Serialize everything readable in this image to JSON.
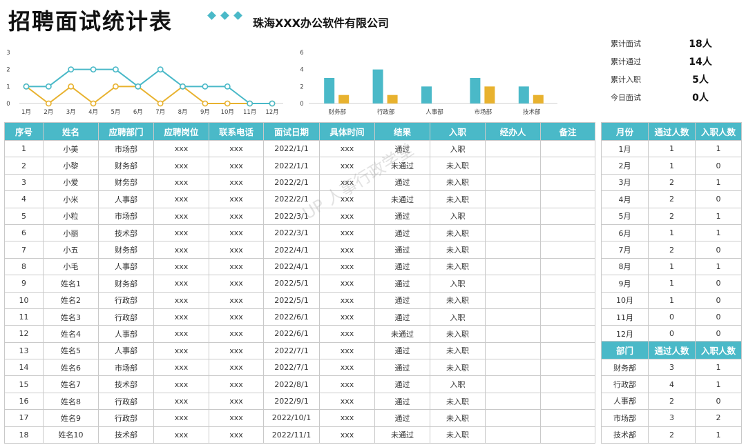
{
  "header": {
    "title": "招聘面试统计表",
    "company": "珠海XXX办公软件有限公司"
  },
  "stats": [
    {
      "label": "累计面试",
      "value": "18人"
    },
    {
      "label": "累计通过",
      "value": "14人"
    },
    {
      "label": "累计入职",
      "value": "5人"
    },
    {
      "label": "今日面试",
      "value": "0人"
    }
  ],
  "colors": {
    "accent": "#4ab9c8",
    "secondary": "#e8b22f"
  },
  "watermark": "UP 人事行政学堂",
  "chart_data": [
    {
      "type": "line",
      "x": [
        "1月",
        "2月",
        "3月",
        "4月",
        "5月",
        "6月",
        "7月",
        "8月",
        "9月",
        "10月",
        "11月",
        "12月"
      ],
      "yticks": [
        0,
        1,
        2,
        3
      ],
      "ylim": [
        0,
        3
      ],
      "series": [
        {
          "name": "",
          "color": "#4ab9c8",
          "values": [
            1,
            1,
            2,
            2,
            2,
            1,
            2,
            1,
            1,
            1,
            0,
            0
          ]
        },
        {
          "name": "",
          "color": "#e8b22f",
          "values": [
            1,
            0,
            1,
            0,
            1,
            1,
            0,
            1,
            0,
            0,
            0,
            0
          ]
        }
      ]
    },
    {
      "type": "bar",
      "categories": [
        "财务部",
        "行政部",
        "人事部",
        "市场部",
        "技术部"
      ],
      "yticks": [
        0,
        2,
        4,
        6
      ],
      "ylim": [
        0,
        6
      ],
      "series": [
        {
          "name": "",
          "color": "#4ab9c8",
          "values": [
            3,
            4,
            2,
            3,
            2
          ]
        },
        {
          "name": "",
          "color": "#e8b22f",
          "values": [
            1,
            1,
            0,
            2,
            1
          ]
        }
      ]
    }
  ],
  "main_table": {
    "headers": [
      "序号",
      "姓名",
      "应聘部门",
      "应聘岗位",
      "联系电话",
      "面试日期",
      "具体时间",
      "结果",
      "入职",
      "经办人",
      "备注"
    ],
    "rows": [
      [
        "1",
        "小美",
        "市场部",
        "xxx",
        "xxx",
        "2022/1/1",
        "xxx",
        "通过",
        "入职",
        "",
        ""
      ],
      [
        "2",
        "小黎",
        "财务部",
        "xxx",
        "xxx",
        "2022/1/1",
        "xxx",
        "未通过",
        "未入职",
        "",
        ""
      ],
      [
        "3",
        "小爱",
        "财务部",
        "xxx",
        "xxx",
        "2022/2/1",
        "xxx",
        "通过",
        "未入职",
        "",
        ""
      ],
      [
        "4",
        "小米",
        "人事部",
        "xxx",
        "xxx",
        "2022/2/1",
        "xxx",
        "未通过",
        "未入职",
        "",
        ""
      ],
      [
        "5",
        "小粒",
        "市场部",
        "xxx",
        "xxx",
        "2022/3/1",
        "xxx",
        "通过",
        "入职",
        "",
        ""
      ],
      [
        "6",
        "小丽",
        "技术部",
        "xxx",
        "xxx",
        "2022/3/1",
        "xxx",
        "通过",
        "未入职",
        "",
        ""
      ],
      [
        "7",
        "小五",
        "财务部",
        "xxx",
        "xxx",
        "2022/4/1",
        "xxx",
        "通过",
        "未入职",
        "",
        ""
      ],
      [
        "8",
        "小毛",
        "人事部",
        "xxx",
        "xxx",
        "2022/4/1",
        "xxx",
        "通过",
        "未入职",
        "",
        ""
      ],
      [
        "9",
        "姓名1",
        "财务部",
        "xxx",
        "xxx",
        "2022/5/1",
        "xxx",
        "通过",
        "入职",
        "",
        ""
      ],
      [
        "10",
        "姓名2",
        "行政部",
        "xxx",
        "xxx",
        "2022/5/1",
        "xxx",
        "通过",
        "未入职",
        "",
        ""
      ],
      [
        "11",
        "姓名3",
        "行政部",
        "xxx",
        "xxx",
        "2022/6/1",
        "xxx",
        "通过",
        "入职",
        "",
        ""
      ],
      [
        "12",
        "姓名4",
        "人事部",
        "xxx",
        "xxx",
        "2022/6/1",
        "xxx",
        "未通过",
        "未入职",
        "",
        ""
      ],
      [
        "13",
        "姓名5",
        "人事部",
        "xxx",
        "xxx",
        "2022/7/1",
        "xxx",
        "通过",
        "未入职",
        "",
        ""
      ],
      [
        "14",
        "姓名6",
        "市场部",
        "xxx",
        "xxx",
        "2022/7/1",
        "xxx",
        "通过",
        "未入职",
        "",
        ""
      ],
      [
        "15",
        "姓名7",
        "技术部",
        "xxx",
        "xxx",
        "2022/8/1",
        "xxx",
        "通过",
        "入职",
        "",
        ""
      ],
      [
        "16",
        "姓名8",
        "行政部",
        "xxx",
        "xxx",
        "2022/9/1",
        "xxx",
        "通过",
        "未入职",
        "",
        ""
      ],
      [
        "17",
        "姓名9",
        "行政部",
        "xxx",
        "xxx",
        "2022/10/1",
        "xxx",
        "通过",
        "未入职",
        "",
        ""
      ],
      [
        "18",
        "姓名10",
        "技术部",
        "xxx",
        "xxx",
        "2022/11/1",
        "xxx",
        "未通过",
        "未入职",
        "",
        ""
      ]
    ]
  },
  "month_table": {
    "headers": [
      "月份",
      "通过人数",
      "入职人数"
    ],
    "rows": [
      [
        "1月",
        "1",
        "1"
      ],
      [
        "2月",
        "1",
        "0"
      ],
      [
        "3月",
        "2",
        "1"
      ],
      [
        "4月",
        "2",
        "0"
      ],
      [
        "5月",
        "2",
        "1"
      ],
      [
        "6月",
        "1",
        "1"
      ],
      [
        "7月",
        "2",
        "0"
      ],
      [
        "8月",
        "1",
        "1"
      ],
      [
        "9月",
        "1",
        "0"
      ],
      [
        "10月",
        "1",
        "0"
      ],
      [
        "11月",
        "0",
        "0"
      ],
      [
        "12月",
        "0",
        "0"
      ]
    ]
  },
  "dept_table": {
    "headers": [
      "部门",
      "通过人数",
      "入职人数"
    ],
    "rows": [
      [
        "财务部",
        "3",
        "1"
      ],
      [
        "行政部",
        "4",
        "1"
      ],
      [
        "人事部",
        "2",
        "0"
      ],
      [
        "市场部",
        "3",
        "2"
      ],
      [
        "技术部",
        "2",
        "1"
      ]
    ]
  }
}
